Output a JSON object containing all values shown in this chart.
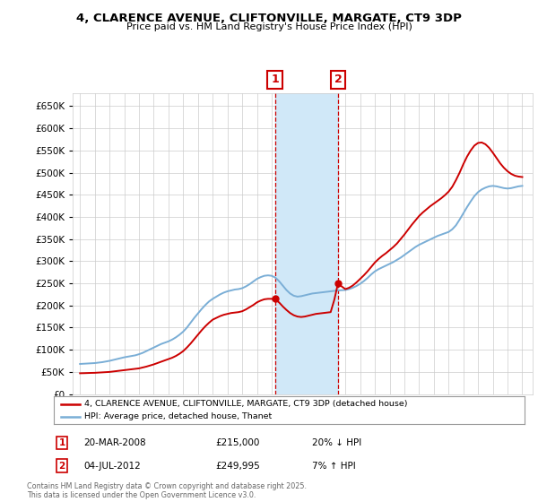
{
  "title": "4, CLARENCE AVENUE, CLIFTONVILLE, MARGATE, CT9 3DP",
  "subtitle": "Price paid vs. HM Land Registry's House Price Index (HPI)",
  "ylim": [
    0,
    680000
  ],
  "yticks": [
    0,
    50000,
    100000,
    150000,
    200000,
    250000,
    300000,
    350000,
    400000,
    450000,
    500000,
    550000,
    600000,
    650000
  ],
  "xlim_start": 1994.5,
  "xlim_end": 2025.7,
  "sale1_date": "20-MAR-2008",
  "sale1_price": 215000,
  "sale1_hpi_pct": "20% ↓ HPI",
  "sale1_year": 2008.22,
  "sale2_date": "04-JUL-2012",
  "sale2_price": 249995,
  "sale2_hpi_pct": "7% ↑ HPI",
  "sale2_year": 2012.51,
  "legend_line1": "4, CLARENCE AVENUE, CLIFTONVILLE, MARGATE, CT9 3DP (detached house)",
  "legend_line2": "HPI: Average price, detached house, Thanet",
  "annotation1_label": "1",
  "annotation2_label": "2",
  "footnote": "Contains HM Land Registry data © Crown copyright and database right 2025.\nThis data is licensed under the Open Government Licence v3.0.",
  "red_color": "#cc0000",
  "blue_color": "#7aaed6",
  "shade_color": "#d0e8f8",
  "grid_color": "#cccccc",
  "background_color": "#ffffff",
  "hpi_years": [
    1995,
    1995.25,
    1995.5,
    1995.75,
    1996,
    1996.25,
    1996.5,
    1996.75,
    1997,
    1997.25,
    1997.5,
    1997.75,
    1998,
    1998.25,
    1998.5,
    1998.75,
    1999,
    1999.25,
    1999.5,
    1999.75,
    2000,
    2000.25,
    2000.5,
    2000.75,
    2001,
    2001.25,
    2001.5,
    2001.75,
    2002,
    2002.25,
    2002.5,
    2002.75,
    2003,
    2003.25,
    2003.5,
    2003.75,
    2004,
    2004.25,
    2004.5,
    2004.75,
    2005,
    2005.25,
    2005.5,
    2005.75,
    2006,
    2006.25,
    2006.5,
    2006.75,
    2007,
    2007.25,
    2007.5,
    2007.75,
    2008,
    2008.25,
    2008.5,
    2008.75,
    2009,
    2009.25,
    2009.5,
    2009.75,
    2010,
    2010.25,
    2010.5,
    2010.75,
    2011,
    2011.25,
    2011.5,
    2011.75,
    2012,
    2012.25,
    2012.5,
    2012.75,
    2013,
    2013.25,
    2013.5,
    2013.75,
    2014,
    2014.25,
    2014.5,
    2014.75,
    2015,
    2015.25,
    2015.5,
    2015.75,
    2016,
    2016.25,
    2016.5,
    2016.75,
    2017,
    2017.25,
    2017.5,
    2017.75,
    2018,
    2018.25,
    2018.5,
    2018.75,
    2019,
    2019.25,
    2019.5,
    2019.75,
    2020,
    2020.25,
    2020.5,
    2020.75,
    2021,
    2021.25,
    2021.5,
    2021.75,
    2022,
    2022.25,
    2022.5,
    2022.75,
    2023,
    2023.25,
    2023.5,
    2023.75,
    2024,
    2024.25,
    2024.5,
    2024.75,
    2025
  ],
  "hpi_values": [
    68000,
    68500,
    69000,
    69500,
    70000,
    71000,
    72000,
    73500,
    75000,
    77000,
    79000,
    81000,
    83000,
    84500,
    86000,
    87500,
    90000,
    93000,
    97000,
    101000,
    105000,
    109000,
    113000,
    116000,
    119000,
    123000,
    128000,
    134000,
    141000,
    150000,
    161000,
    172000,
    182000,
    192000,
    201000,
    209000,
    215000,
    220000,
    225000,
    229000,
    232000,
    234000,
    236000,
    237000,
    239000,
    243000,
    248000,
    254000,
    260000,
    264000,
    267000,
    268000,
    267000,
    263000,
    255000,
    245000,
    235000,
    227000,
    222000,
    220000,
    221000,
    223000,
    225000,
    227000,
    228000,
    229000,
    230000,
    231000,
    232000,
    233000,
    234000,
    234500,
    235000,
    237000,
    240000,
    244000,
    249000,
    255000,
    262000,
    270000,
    277000,
    282000,
    286000,
    290000,
    294000,
    298000,
    303000,
    308000,
    314000,
    320000,
    326000,
    332000,
    337000,
    341000,
    345000,
    349000,
    353000,
    357000,
    360000,
    363000,
    366000,
    372000,
    381000,
    394000,
    408000,
    422000,
    435000,
    447000,
    456000,
    462000,
    466000,
    469000,
    470000,
    469000,
    467000,
    465000,
    464000,
    465000,
    467000,
    469000,
    470000
  ],
  "price_years": [
    1995.0,
    1995.25,
    1995.5,
    1995.75,
    1996.0,
    1996.25,
    1996.5,
    1996.75,
    1997.0,
    1997.25,
    1997.5,
    1997.75,
    1998.0,
    1998.25,
    1998.5,
    1998.75,
    1999.0,
    1999.25,
    1999.5,
    1999.75,
    2000.0,
    2000.25,
    2000.5,
    2000.75,
    2001.0,
    2001.25,
    2001.5,
    2001.75,
    2002.0,
    2002.25,
    2002.5,
    2002.75,
    2003.0,
    2003.25,
    2003.5,
    2003.75,
    2004.0,
    2004.25,
    2004.5,
    2004.75,
    2005.0,
    2005.25,
    2005.5,
    2005.75,
    2006.0,
    2006.25,
    2006.5,
    2006.75,
    2007.0,
    2007.25,
    2007.5,
    2007.75,
    2008.0,
    2008.25,
    2008.5,
    2008.75,
    2009.0,
    2009.25,
    2009.5,
    2009.75,
    2010.0,
    2010.25,
    2010.5,
    2010.75,
    2011.0,
    2011.25,
    2011.5,
    2011.75,
    2012.0,
    2012.25,
    2012.5,
    2012.75,
    2013.0,
    2013.25,
    2013.5,
    2013.75,
    2014.0,
    2014.25,
    2014.5,
    2014.75,
    2015.0,
    2015.25,
    2015.5,
    2015.75,
    2016.0,
    2016.25,
    2016.5,
    2016.75,
    2017.0,
    2017.25,
    2017.5,
    2017.75,
    2018.0,
    2018.25,
    2018.5,
    2018.75,
    2019.0,
    2019.25,
    2019.5,
    2019.75,
    2020.0,
    2020.25,
    2020.5,
    2020.75,
    2021.0,
    2021.25,
    2021.5,
    2021.75,
    2022.0,
    2022.25,
    2022.5,
    2022.75,
    2023.0,
    2023.25,
    2023.5,
    2023.75,
    2024.0,
    2024.25,
    2024.5,
    2024.75,
    2025.0
  ],
  "price_values": [
    47000,
    47200,
    47500,
    47800,
    48000,
    48500,
    49000,
    49500,
    50000,
    51000,
    52000,
    53000,
    54000,
    55000,
    56000,
    57000,
    58000,
    60000,
    62000,
    64500,
    67000,
    70000,
    73000,
    76000,
    79000,
    82000,
    86000,
    91000,
    97000,
    105000,
    114000,
    124000,
    134000,
    144000,
    153000,
    161000,
    168000,
    172000,
    176000,
    179000,
    181000,
    183000,
    184000,
    185000,
    187000,
    191000,
    196000,
    201000,
    207000,
    211000,
    214000,
    215000,
    215000,
    213000,
    207000,
    198000,
    190000,
    183000,
    178000,
    175000,
    174000,
    175000,
    177000,
    179000,
    181000,
    182000,
    183000,
    184000,
    185000,
    213000,
    250000,
    243000,
    237000,
    240000,
    245000,
    252000,
    260000,
    268000,
    277000,
    287000,
    297000,
    305000,
    312000,
    318000,
    325000,
    332000,
    340000,
    350000,
    360000,
    371000,
    382000,
    392000,
    402000,
    410000,
    417000,
    424000,
    430000,
    436000,
    442000,
    449000,
    457000,
    468000,
    483000,
    500000,
    519000,
    536000,
    550000,
    561000,
    567000,
    568000,
    564000,
    556000,
    545000,
    533000,
    521000,
    511000,
    503000,
    497000,
    493000,
    491000,
    490000
  ]
}
